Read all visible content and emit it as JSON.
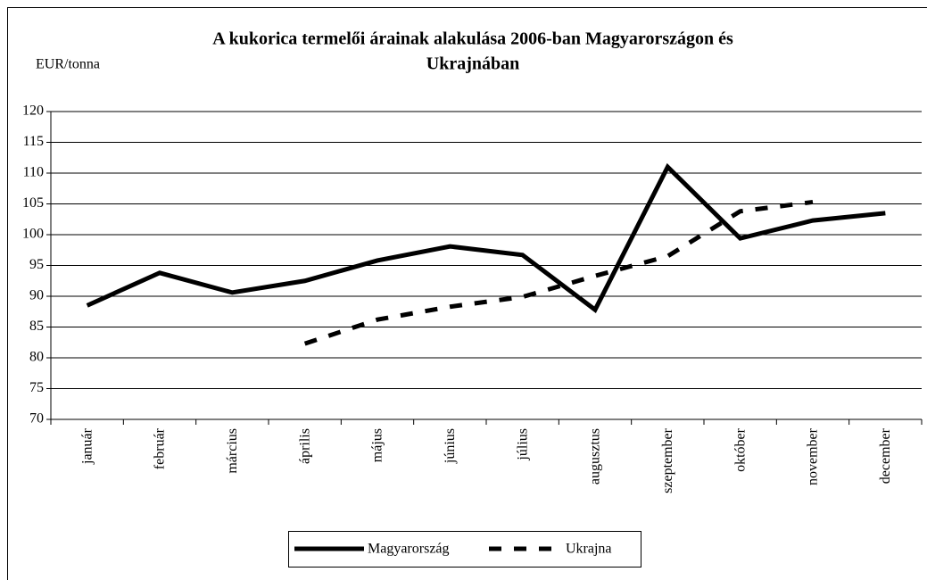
{
  "chart_data": {
    "type": "line",
    "title": [
      "A kukorica termelői árainak alakulása 2006-ban Magyarországon és",
      "Ukrajnában"
    ],
    "y_label": "EUR/tonna",
    "categories": [
      "január",
      "február",
      "március",
      "április",
      "május",
      "június",
      "július",
      "augusztus",
      "szeptember",
      "október",
      "november",
      "december"
    ],
    "series": [
      {
        "name": "Magyarország",
        "color": "#000000",
        "dash": false,
        "values": [
          88.5,
          93.8,
          90.6,
          92.5,
          95.8,
          98.1,
          96.7,
          87.8,
          111,
          99.4,
          102.3,
          103.5
        ]
      },
      {
        "name": "Ukrajna",
        "color": "#000000",
        "dash": true,
        "values": [
          null,
          null,
          null,
          82.3,
          86.2,
          88.3,
          89.9,
          93.3,
          96.5,
          103.8,
          105.3,
          null
        ]
      }
    ],
    "ylim": [
      70,
      120
    ],
    "yticks": [
      70,
      75,
      80,
      85,
      90,
      95,
      100,
      105,
      110,
      115,
      120
    ],
    "grid": true,
    "legend": "bottom"
  }
}
